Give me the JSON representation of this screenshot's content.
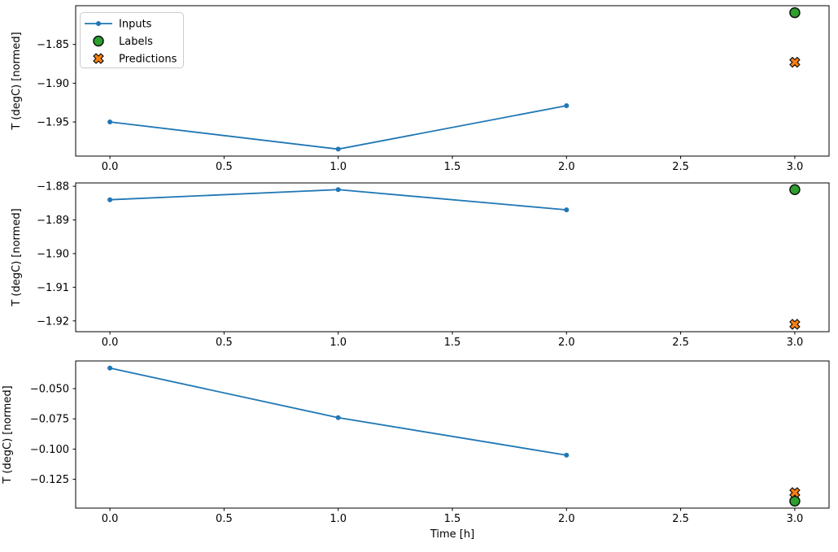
{
  "figure": {
    "background": "#ffffff",
    "xlabel": "Time [h]",
    "ylabel": "T (degC) [normed]"
  },
  "colors": {
    "inputs_line": "#1f77b4",
    "labels_marker": "#2ca02c",
    "predictions_marker": "#ff7f0e",
    "marker_edge": "#111111",
    "spine": "#000000",
    "tick_text": "#000000",
    "legend_border": "#cccccc",
    "legend_background": "rgba(255,255,255,0.8)"
  },
  "legend": {
    "position": "upper left",
    "items": [
      {
        "label": "Inputs",
        "marker": "line-dot",
        "color": "#1f77b4"
      },
      {
        "label": "Labels",
        "marker": "circle",
        "color": "#2ca02c"
      },
      {
        "label": "Predictions",
        "marker": "x",
        "color": "#ff7f0e"
      }
    ]
  },
  "chart_data": [
    {
      "type": "line",
      "title": "",
      "xlabel": "",
      "ylabel": "T (degC) [normed]",
      "xlim": [
        -0.15,
        3.15
      ],
      "ylim": [
        -1.994,
        -1.8
      ],
      "x_ticks": [
        0.0,
        0.5,
        1.0,
        1.5,
        2.0,
        2.5,
        3.0
      ],
      "x_tick_labels": [
        "0.0",
        "0.5",
        "1.0",
        "1.5",
        "2.0",
        "2.5",
        "3.0"
      ],
      "y_ticks": [
        -1.85,
        -1.9,
        -1.95
      ],
      "y_tick_labels": [
        "−1.85",
        "−1.90",
        "−1.95"
      ],
      "grid": false,
      "legend_visible": true,
      "series": [
        {
          "name": "Inputs",
          "style": "line-dot",
          "x": [
            0,
            1,
            2
          ],
          "y": [
            -1.95,
            -1.985,
            -1.929
          ]
        },
        {
          "name": "Labels",
          "style": "circle",
          "x": [
            3
          ],
          "y": [
            -1.809
          ]
        },
        {
          "name": "Predictions",
          "style": "x",
          "x": [
            3
          ],
          "y": [
            -1.873
          ]
        }
      ]
    },
    {
      "type": "line",
      "title": "",
      "xlabel": "",
      "ylabel": "T (degC) [normed]",
      "xlim": [
        -0.15,
        3.15
      ],
      "ylim": [
        -1.9232,
        -1.879
      ],
      "x_ticks": [
        0.0,
        0.5,
        1.0,
        1.5,
        2.0,
        2.5,
        3.0
      ],
      "x_tick_labels": [
        "0.0",
        "0.5",
        "1.0",
        "1.5",
        "2.0",
        "2.5",
        "3.0"
      ],
      "y_ticks": [
        -1.88,
        -1.89,
        -1.9,
        -1.91,
        -1.92
      ],
      "y_tick_labels": [
        "−1.88",
        "−1.89",
        "−1.90",
        "−1.91",
        "−1.92"
      ],
      "grid": false,
      "legend_visible": false,
      "series": [
        {
          "name": "Inputs",
          "style": "line-dot",
          "x": [
            0,
            1,
            2
          ],
          "y": [
            -1.884,
            -1.881,
            -1.887
          ]
        },
        {
          "name": "Labels",
          "style": "circle",
          "x": [
            3
          ],
          "y": [
            -1.881
          ]
        },
        {
          "name": "Predictions",
          "style": "x",
          "x": [
            3
          ],
          "y": [
            -1.921
          ]
        }
      ]
    },
    {
      "type": "line",
      "title": "",
      "xlabel": "Time [h]",
      "ylabel": "T (degC) [normed]",
      "xlim": [
        -0.15,
        3.15
      ],
      "ylim": [
        -0.1488,
        -0.0271
      ],
      "x_ticks": [
        0.0,
        0.5,
        1.0,
        1.5,
        2.0,
        2.5,
        3.0
      ],
      "x_tick_labels": [
        "0.0",
        "0.5",
        "1.0",
        "1.5",
        "2.0",
        "2.5",
        "3.0"
      ],
      "y_ticks": [
        -0.05,
        -0.075,
        -0.1,
        -0.125
      ],
      "y_tick_labels": [
        "−0.050",
        "−0.075",
        "−0.100",
        "−0.125"
      ],
      "grid": false,
      "legend_visible": false,
      "series": [
        {
          "name": "Inputs",
          "style": "line-dot",
          "x": [
            0,
            1,
            2
          ],
          "y": [
            -0.033,
            -0.074,
            -0.105
          ]
        },
        {
          "name": "Labels",
          "style": "circle",
          "x": [
            3
          ],
          "y": [
            -0.143
          ]
        },
        {
          "name": "Predictions",
          "style": "x",
          "x": [
            3
          ],
          "y": [
            -0.136
          ]
        }
      ]
    }
  ]
}
